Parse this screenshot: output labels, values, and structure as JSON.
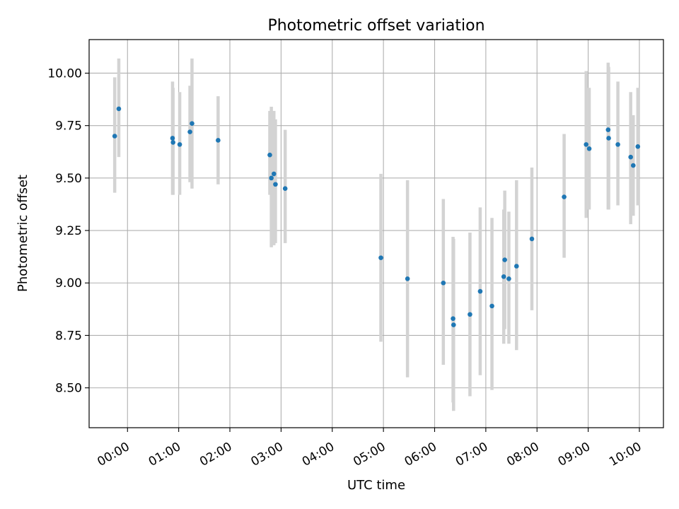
{
  "chart_data": {
    "type": "scatter",
    "title": "Photometric offset variation",
    "xlabel": "UTC time",
    "ylabel": "Photometric offset",
    "xlim": [
      -0.75,
      10.47
    ],
    "ylim": [
      8.31,
      10.16
    ],
    "grid": true,
    "x_ticks": [
      {
        "value": 0,
        "label": "00:00"
      },
      {
        "value": 1,
        "label": "01:00"
      },
      {
        "value": 2,
        "label": "02:00"
      },
      {
        "value": 3,
        "label": "03:00"
      },
      {
        "value": 4,
        "label": "04:00"
      },
      {
        "value": 5,
        "label": "05:00"
      },
      {
        "value": 6,
        "label": "06:00"
      },
      {
        "value": 7,
        "label": "07:00"
      },
      {
        "value": 8,
        "label": "08:00"
      },
      {
        "value": 9,
        "label": "09:00"
      },
      {
        "value": 10,
        "label": "10:00"
      }
    ],
    "y_ticks": [
      {
        "value": 8.5,
        "label": "8.50"
      },
      {
        "value": 8.75,
        "label": "8.75"
      },
      {
        "value": 9.0,
        "label": "9.00"
      },
      {
        "value": 9.25,
        "label": "9.25"
      },
      {
        "value": 9.5,
        "label": "9.50"
      },
      {
        "value": 9.75,
        "label": "9.75"
      },
      {
        "value": 10.0,
        "label": "10.00"
      }
    ],
    "marker_color": "#1f77b4",
    "errorbar_color": "#d3d3d3",
    "grid_color": "#b0b0b0",
    "points": [
      {
        "x": -0.25,
        "y": 9.7,
        "lo": 9.43,
        "hi": 9.98
      },
      {
        "x": -0.17,
        "y": 9.83,
        "lo": 9.6,
        "hi": 10.07
      },
      {
        "x": 0.88,
        "y": 9.69,
        "lo": 9.42,
        "hi": 9.96
      },
      {
        "x": 0.89,
        "y": 9.67,
        "lo": 9.42,
        "hi": 9.93
      },
      {
        "x": 1.02,
        "y": 9.66,
        "lo": 9.42,
        "hi": 9.91
      },
      {
        "x": 1.22,
        "y": 9.72,
        "lo": 9.48,
        "hi": 9.94
      },
      {
        "x": 1.26,
        "y": 9.76,
        "lo": 9.45,
        "hi": 10.07
      },
      {
        "x": 1.77,
        "y": 9.68,
        "lo": 9.47,
        "hi": 9.89
      },
      {
        "x": 2.78,
        "y": 9.61,
        "lo": 9.42,
        "hi": 9.82
      },
      {
        "x": 2.81,
        "y": 9.5,
        "lo": 9.17,
        "hi": 9.84
      },
      {
        "x": 2.86,
        "y": 9.52,
        "lo": 9.18,
        "hi": 9.82
      },
      {
        "x": 2.89,
        "y": 9.47,
        "lo": 9.19,
        "hi": 9.78
      },
      {
        "x": 3.08,
        "y": 9.45,
        "lo": 9.19,
        "hi": 9.73
      },
      {
        "x": 4.95,
        "y": 9.12,
        "lo": 8.72,
        "hi": 9.52
      },
      {
        "x": 5.47,
        "y": 9.02,
        "lo": 8.55,
        "hi": 9.49
      },
      {
        "x": 6.17,
        "y": 9.0,
        "lo": 8.61,
        "hi": 9.4
      },
      {
        "x": 6.36,
        "y": 8.83,
        "lo": 8.43,
        "hi": 9.22
      },
      {
        "x": 6.37,
        "y": 8.8,
        "lo": 8.39,
        "hi": 9.21
      },
      {
        "x": 6.69,
        "y": 8.85,
        "lo": 8.46,
        "hi": 9.24
      },
      {
        "x": 6.89,
        "y": 8.96,
        "lo": 8.56,
        "hi": 9.36
      },
      {
        "x": 7.12,
        "y": 8.89,
        "lo": 8.49,
        "hi": 9.31
      },
      {
        "x": 7.35,
        "y": 9.03,
        "lo": 8.71,
        "hi": 9.35
      },
      {
        "x": 7.37,
        "y": 9.11,
        "lo": 8.78,
        "hi": 9.44
      },
      {
        "x": 7.45,
        "y": 9.02,
        "lo": 8.71,
        "hi": 9.34
      },
      {
        "x": 7.6,
        "y": 9.08,
        "lo": 8.68,
        "hi": 9.49
      },
      {
        "x": 7.9,
        "y": 9.21,
        "lo": 8.87,
        "hi": 9.55
      },
      {
        "x": 8.53,
        "y": 9.41,
        "lo": 9.12,
        "hi": 9.71
      },
      {
        "x": 8.96,
        "y": 9.66,
        "lo": 9.31,
        "hi": 10.01
      },
      {
        "x": 9.02,
        "y": 9.64,
        "lo": 9.35,
        "hi": 9.93
      },
      {
        "x": 9.39,
        "y": 9.73,
        "lo": 9.35,
        "hi": 10.05
      },
      {
        "x": 9.4,
        "y": 9.69,
        "lo": 9.35,
        "hi": 10.03
      },
      {
        "x": 9.58,
        "y": 9.66,
        "lo": 9.37,
        "hi": 9.96
      },
      {
        "x": 9.83,
        "y": 9.6,
        "lo": 9.28,
        "hi": 9.91
      },
      {
        "x": 9.88,
        "y": 9.56,
        "lo": 9.32,
        "hi": 9.8
      },
      {
        "x": 9.97,
        "y": 9.65,
        "lo": 9.37,
        "hi": 9.93
      }
    ]
  }
}
